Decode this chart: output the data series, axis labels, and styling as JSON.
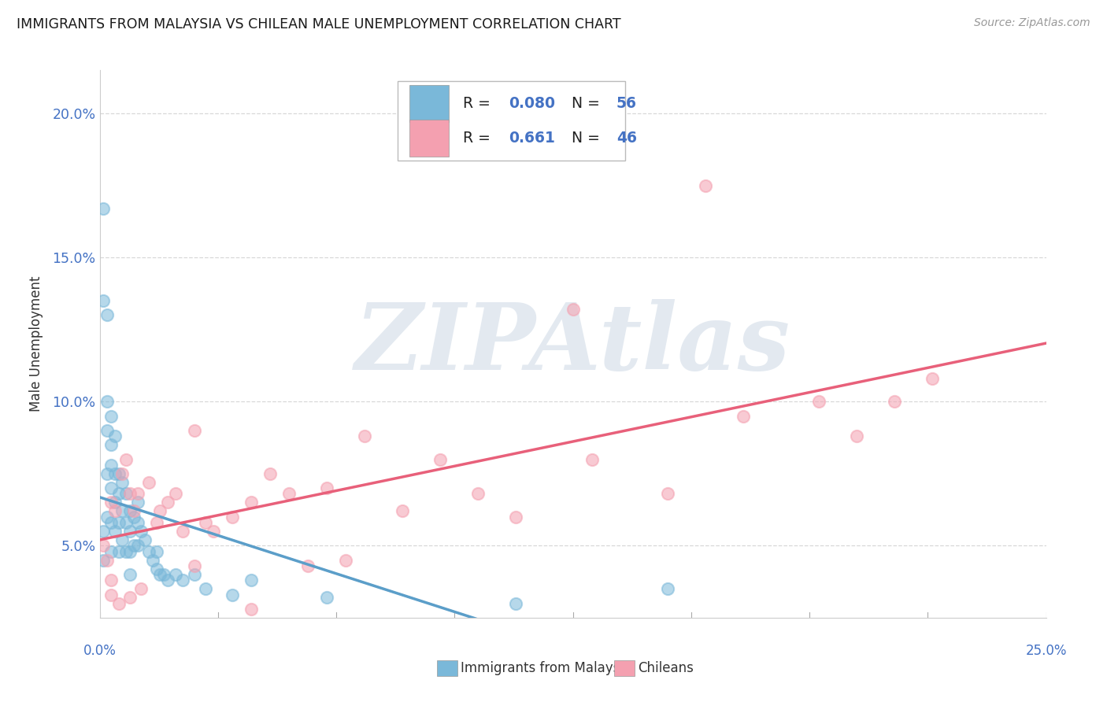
{
  "title": "IMMIGRANTS FROM MALAYSIA VS CHILEAN MALE UNEMPLOYMENT CORRELATION CHART",
  "source": "Source: ZipAtlas.com",
  "ylabel": "Male Unemployment",
  "xlim": [
    0.0,
    0.25
  ],
  "ylim": [
    0.025,
    0.215
  ],
  "blue_color": "#7ab8d9",
  "pink_color": "#f4a0b0",
  "trend_blue_color": "#5b9ec9",
  "trend_pink_color": "#e8607a",
  "trend_blue_dash": "#aacce0",
  "number_color": "#4472c4",
  "label_color": "#333333",
  "yticks": [
    0.05,
    0.1,
    0.15,
    0.2
  ],
  "ytick_labels": [
    "5.0%",
    "10.0%",
    "15.0%",
    "20.0%"
  ],
  "watermark": "ZIPAtlas",
  "watermark_color": "#ccd8e5",
  "background_color": "#ffffff",
  "grid_color": "#d8d8d8",
  "blue_R": "0.080",
  "blue_N": "56",
  "pink_R": "0.661",
  "pink_N": "46",
  "blue_scatter_x": [
    0.001,
    0.001,
    0.001,
    0.001,
    0.002,
    0.002,
    0.002,
    0.002,
    0.002,
    0.003,
    0.003,
    0.003,
    0.003,
    0.003,
    0.003,
    0.004,
    0.004,
    0.004,
    0.004,
    0.005,
    0.005,
    0.005,
    0.005,
    0.006,
    0.006,
    0.006,
    0.007,
    0.007,
    0.007,
    0.008,
    0.008,
    0.008,
    0.008,
    0.009,
    0.009,
    0.01,
    0.01,
    0.01,
    0.011,
    0.012,
    0.013,
    0.014,
    0.015,
    0.015,
    0.016,
    0.017,
    0.018,
    0.02,
    0.022,
    0.025,
    0.028,
    0.035,
    0.04,
    0.06,
    0.11,
    0.15
  ],
  "blue_scatter_y": [
    0.167,
    0.135,
    0.055,
    0.045,
    0.13,
    0.1,
    0.09,
    0.075,
    0.06,
    0.095,
    0.085,
    0.078,
    0.07,
    0.058,
    0.048,
    0.088,
    0.075,
    0.065,
    0.055,
    0.075,
    0.068,
    0.058,
    0.048,
    0.072,
    0.062,
    0.052,
    0.068,
    0.058,
    0.048,
    0.062,
    0.055,
    0.048,
    0.04,
    0.06,
    0.05,
    0.065,
    0.058,
    0.05,
    0.055,
    0.052,
    0.048,
    0.045,
    0.048,
    0.042,
    0.04,
    0.04,
    0.038,
    0.04,
    0.038,
    0.04,
    0.035,
    0.033,
    0.038,
    0.032,
    0.03,
    0.035
  ],
  "pink_scatter_x": [
    0.001,
    0.002,
    0.003,
    0.003,
    0.004,
    0.005,
    0.006,
    0.007,
    0.008,
    0.008,
    0.009,
    0.01,
    0.011,
    0.013,
    0.015,
    0.016,
    0.018,
    0.02,
    0.022,
    0.025,
    0.028,
    0.03,
    0.035,
    0.04,
    0.04,
    0.045,
    0.05,
    0.055,
    0.06,
    0.065,
    0.07,
    0.08,
    0.09,
    0.1,
    0.11,
    0.13,
    0.15,
    0.16,
    0.17,
    0.19,
    0.2,
    0.21,
    0.22,
    0.003,
    0.025,
    0.125
  ],
  "pink_scatter_y": [
    0.05,
    0.045,
    0.038,
    0.065,
    0.062,
    0.03,
    0.075,
    0.08,
    0.068,
    0.032,
    0.062,
    0.068,
    0.035,
    0.072,
    0.058,
    0.062,
    0.065,
    0.068,
    0.055,
    0.09,
    0.058,
    0.055,
    0.06,
    0.065,
    0.028,
    0.075,
    0.068,
    0.043,
    0.07,
    0.045,
    0.088,
    0.062,
    0.08,
    0.068,
    0.06,
    0.08,
    0.068,
    0.175,
    0.095,
    0.1,
    0.088,
    0.1,
    0.108,
    0.033,
    0.043,
    0.132
  ]
}
